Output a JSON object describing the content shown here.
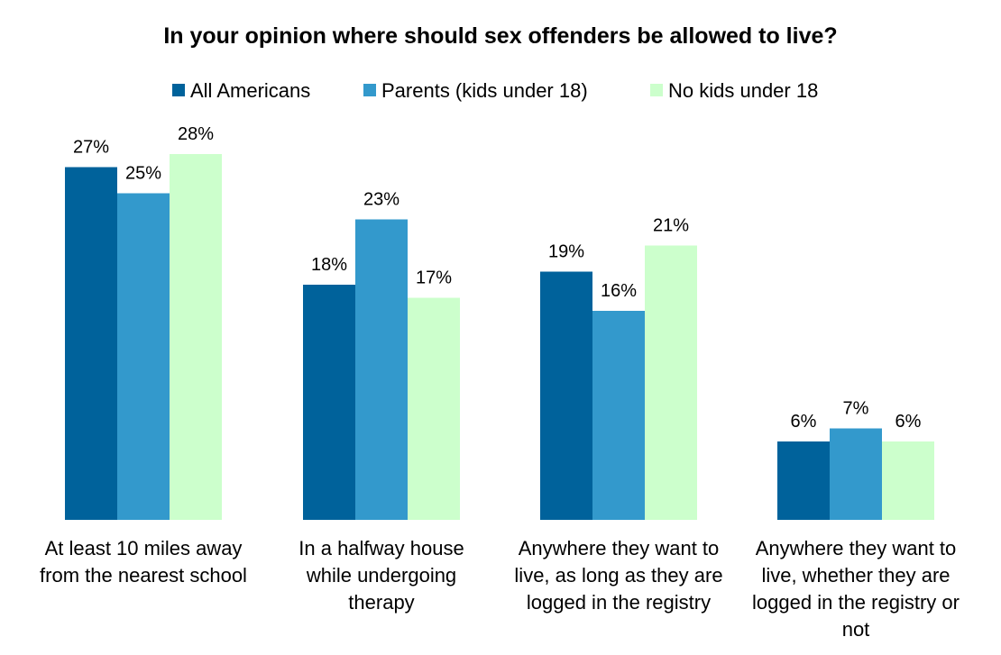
{
  "chart_data": {
    "type": "bar",
    "title": "In your opinion where should sex offenders be allowed to live?",
    "xlabel": "",
    "ylabel": "",
    "ylim": [
      0,
      30
    ],
    "grid": false,
    "legend_position": "top-center",
    "categories": [
      [
        "At least 10 miles away",
        "from the nearest school"
      ],
      [
        "In a halfway house",
        "while undergoing",
        "therapy"
      ],
      [
        "Anywhere they want to",
        "live, as long as they are",
        "logged in the registry"
      ],
      [
        "Anywhere they want to",
        "live, whether they are",
        "logged in the registry or",
        "not"
      ]
    ],
    "series": [
      {
        "name": "All Americans",
        "color": "#00629B",
        "values": [
          27,
          18,
          19,
          6
        ],
        "labels": [
          "27%",
          "18%",
          "19%",
          "6%"
        ]
      },
      {
        "name": "Parents (kids under 18)",
        "color": "#3399CC",
        "values": [
          25,
          23,
          16,
          7
        ],
        "labels": [
          "25%",
          "23%",
          "16%",
          "7%"
        ]
      },
      {
        "name": "No kids under 18",
        "color": "#CCFFCC",
        "values": [
          28,
          17,
          21,
          6
        ],
        "labels": [
          "28%",
          "17%",
          "21%",
          "6%"
        ]
      }
    ]
  }
}
